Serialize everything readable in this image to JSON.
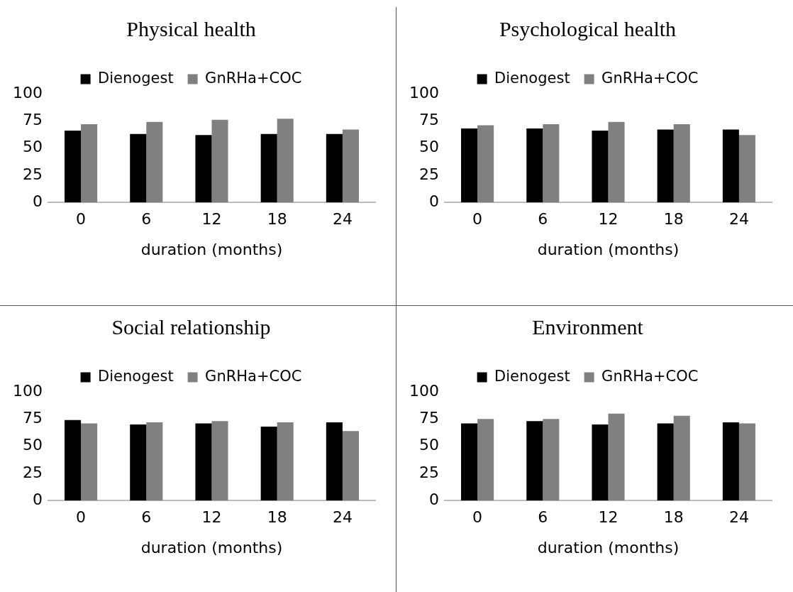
{
  "chart_data": [
    {
      "type": "bar",
      "title": "Physical health",
      "xlabel": "duration (months)",
      "categories": [
        "0",
        "6",
        "12",
        "18",
        "24"
      ],
      "series": [
        {
          "name": "Dienogest",
          "color": "#000000",
          "values": [
            66,
            63,
            62,
            63,
            63
          ]
        },
        {
          "name": "GnRHa+COC",
          "color": "#808080",
          "values": [
            72,
            74,
            76,
            77,
            67
          ]
        }
      ],
      "ylim": [
        0,
        100
      ],
      "yticks": [
        0,
        25,
        50,
        75,
        100
      ],
      "grid": false,
      "legend": "top"
    },
    {
      "type": "bar",
      "title": "Psychological health",
      "xlabel": "duration (months)",
      "categories": [
        "0",
        "6",
        "12",
        "18",
        "24"
      ],
      "series": [
        {
          "name": "Dienogest",
          "color": "#000000",
          "values": [
            68,
            68,
            66,
            67,
            67
          ]
        },
        {
          "name": "GnRHa+COC",
          "color": "#808080",
          "values": [
            71,
            72,
            74,
            72,
            62
          ]
        }
      ],
      "ylim": [
        0,
        100
      ],
      "yticks": [
        0,
        25,
        50,
        75,
        100
      ],
      "grid": false,
      "legend": "top"
    },
    {
      "type": "bar",
      "title": "Social relationship",
      "xlabel": "duration (months)",
      "categories": [
        "0",
        "6",
        "12",
        "18",
        "24"
      ],
      "series": [
        {
          "name": "Dienogest",
          "color": "#000000",
          "values": [
            74,
            70,
            71,
            68,
            72
          ]
        },
        {
          "name": "GnRHa+COC",
          "color": "#808080",
          "values": [
            71,
            72,
            73,
            72,
            64
          ]
        }
      ],
      "ylim": [
        0,
        100
      ],
      "yticks": [
        0,
        25,
        50,
        75,
        100
      ],
      "grid": false,
      "legend": "top"
    },
    {
      "type": "bar",
      "title": "Environment",
      "xlabel": "duration (months)",
      "categories": [
        "0",
        "6",
        "12",
        "18",
        "24"
      ],
      "series": [
        {
          "name": "Dienogest",
          "color": "#000000",
          "values": [
            71,
            73,
            70,
            71,
            72
          ]
        },
        {
          "name": "GnRHa+COC",
          "color": "#808080",
          "values": [
            75,
            75,
            80,
            78,
            71
          ]
        }
      ],
      "ylim": [
        0,
        100
      ],
      "yticks": [
        0,
        25,
        50,
        75,
        100
      ],
      "grid": false,
      "legend": "top"
    }
  ]
}
